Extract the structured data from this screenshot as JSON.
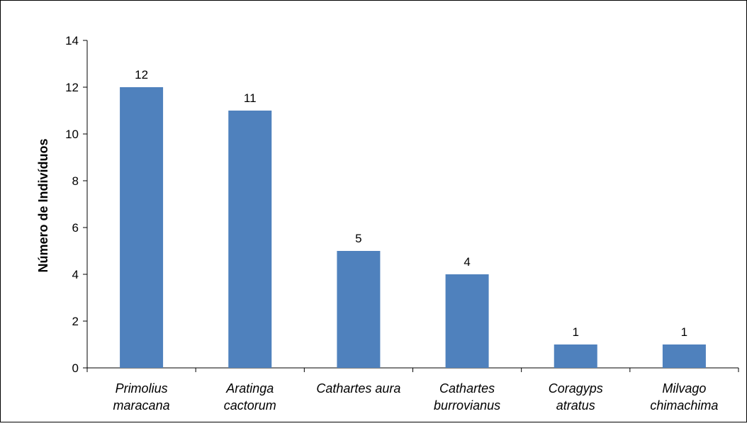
{
  "chart_data": {
    "type": "bar",
    "title": "",
    "xlabel": "",
    "ylabel": "Número de Indivíduos",
    "categories": [
      [
        "Primolius",
        "maracana"
      ],
      [
        "Aratinga",
        "cactorum"
      ],
      [
        "Cathartes aura"
      ],
      [
        "Cathartes",
        "burrovianus"
      ],
      [
        "Coragyps",
        "atratus"
      ],
      [
        "Milvago",
        "chimachima"
      ]
    ],
    "values": [
      12,
      11,
      5,
      4,
      1,
      1
    ],
    "data_labels": [
      "12",
      "11",
      "5",
      "4",
      "1",
      "1"
    ],
    "ylim": [
      0,
      14
    ],
    "yticks": [
      "0",
      "2",
      "4",
      "6",
      "8",
      "10",
      "12",
      "14"
    ],
    "grid": false,
    "legend": "none",
    "bar_color": "#4f81bd",
    "category_label_style": "italic"
  }
}
